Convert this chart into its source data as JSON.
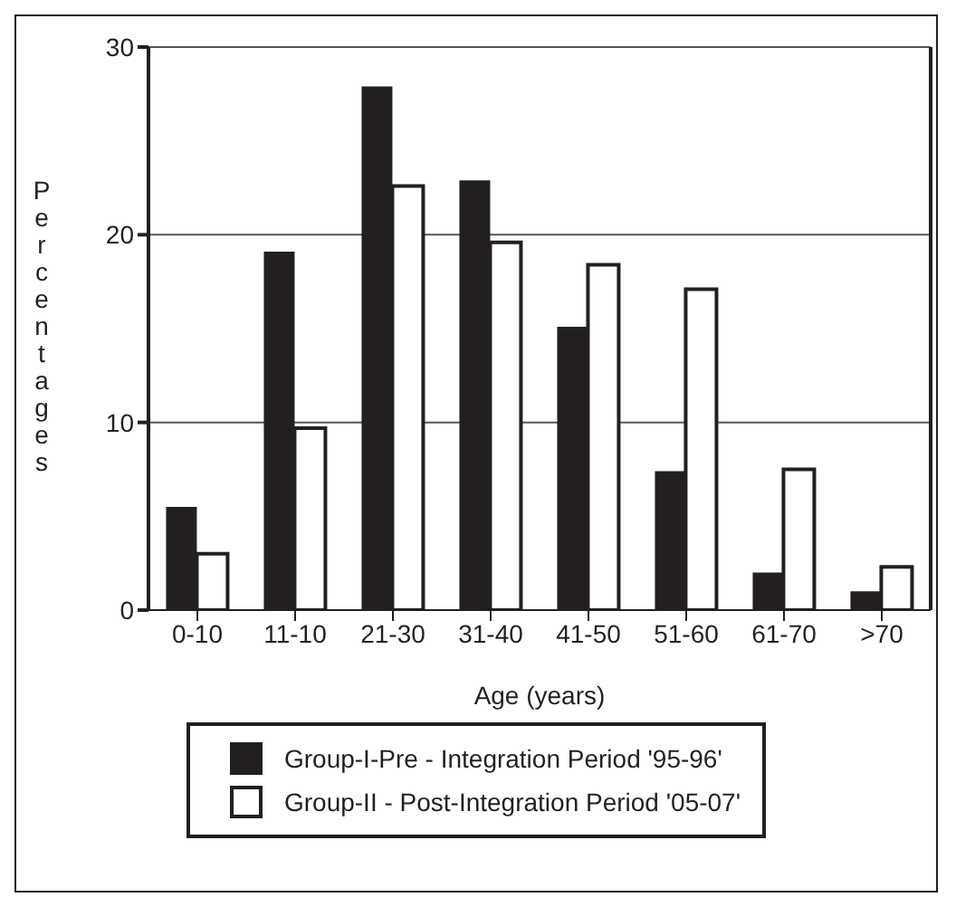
{
  "chart_data": {
    "type": "bar",
    "xlabel": "Age (years)",
    "ylabel": "Percentages",
    "categories": [
      "0-10",
      "11-10",
      "21-30",
      "31-40",
      "41-50",
      "51-60",
      "61-70",
      ">70"
    ],
    "series": [
      {
        "name": "Group-I-Pre - Integration Period '95-96'",
        "color": "#231f20",
        "values": [
          5.5,
          19.1,
          27.9,
          22.9,
          15.1,
          7.4,
          2.0,
          1.0
        ]
      },
      {
        "name": "Group-II - Post-Integration Period '05-07'",
        "color": "#ffffff",
        "values": [
          3.0,
          9.7,
          22.6,
          19.6,
          18.4,
          17.1,
          7.5,
          2.3
        ]
      }
    ],
    "ylim": [
      0,
      30
    ],
    "yticks": [
      0,
      10,
      20,
      30
    ],
    "grid": "y",
    "legend": "bottom"
  }
}
